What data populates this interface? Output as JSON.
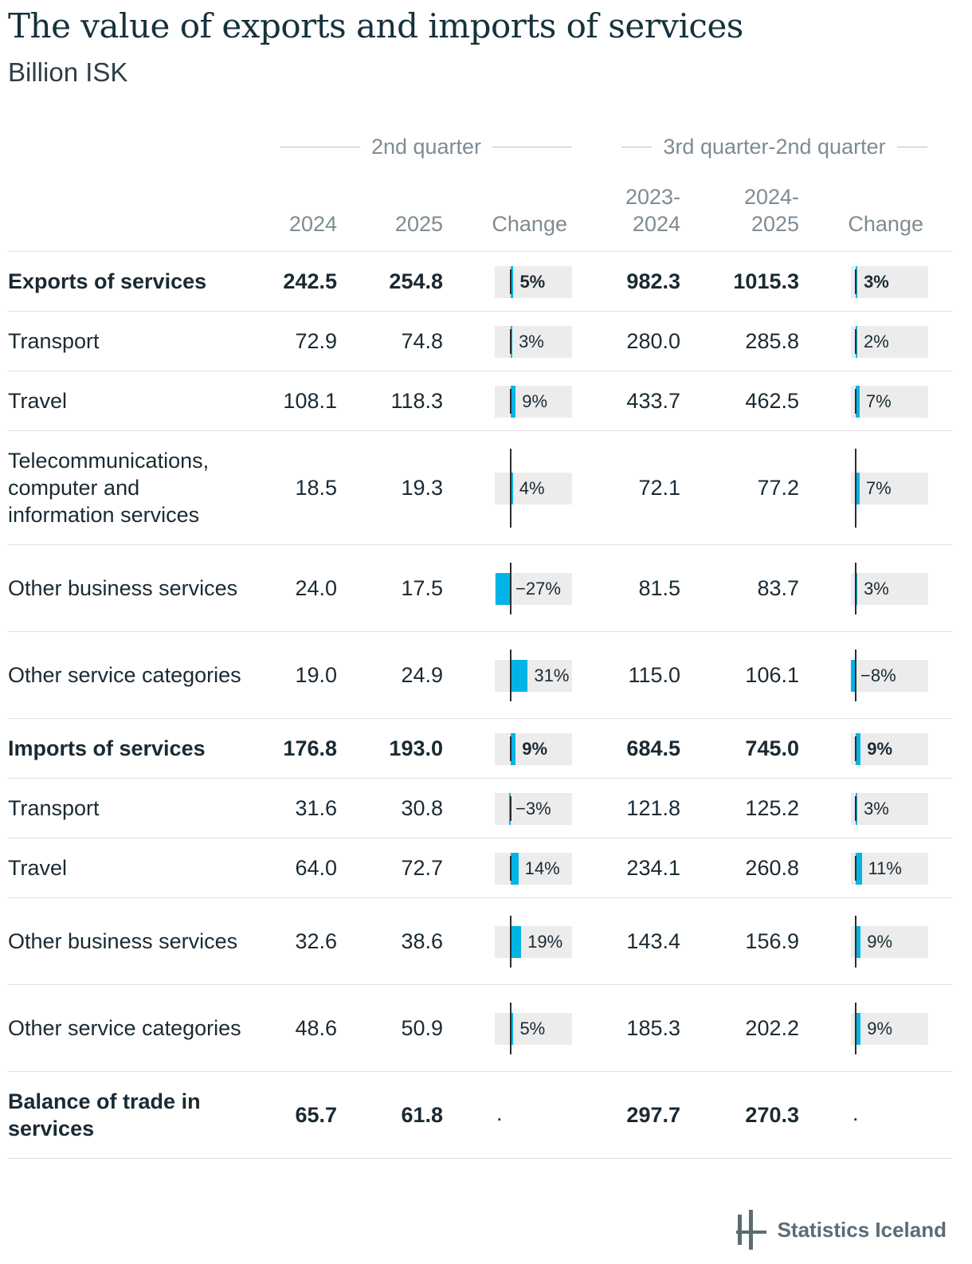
{
  "title": "The value of exports and imports of services",
  "subtitle": "Billion ISK",
  "groups": {
    "q2": "2nd quarter",
    "q3q2": "3rd quarter-2nd quarter"
  },
  "columns": {
    "c2024": "2024",
    "c2025": "2025",
    "change1": "Change",
    "p2023a": "2023-",
    "p2023b": "2024",
    "p2024a": "2024-",
    "p2024b": "2025",
    "change2": "Change"
  },
  "colors": {
    "bar": "#00b4e6",
    "bar_bg": "#ececec",
    "title": "#16323c"
  },
  "brand": {
    "name": "Statistics Iceland",
    "icon": "statistics-iceland-logo-icon"
  },
  "chart_data": {
    "type": "table",
    "rows": [
      {
        "label": "Exports of services",
        "bold": true,
        "v2024": "242.5",
        "v2025": "254.8",
        "ch1": 5,
        "ch1_text": "5%",
        "p1": "982.3",
        "p2": "1015.3",
        "ch2": 3,
        "ch2_text": "3%"
      },
      {
        "label": "Transport",
        "bold": false,
        "v2024": "72.9",
        "v2025": "74.8",
        "ch1": 3,
        "ch1_text": "3%",
        "p1": "280.0",
        "p2": "285.8",
        "ch2": 2,
        "ch2_text": "2%"
      },
      {
        "label": "Travel",
        "bold": false,
        "v2024": "108.1",
        "v2025": "118.3",
        "ch1": 9,
        "ch1_text": "9%",
        "p1": "433.7",
        "p2": "462.5",
        "ch2": 7,
        "ch2_text": "7%"
      },
      {
        "label": "Telecommunications, computer and information services",
        "bold": false,
        "v2024": "18.5",
        "v2025": "19.3",
        "ch1": 4,
        "ch1_text": "4%",
        "p1": "72.1",
        "p2": "77.2",
        "ch2": 7,
        "ch2_text": "7%"
      },
      {
        "label": "Other business services",
        "bold": false,
        "v2024": "24.0",
        "v2025": "17.5",
        "ch1": -27,
        "ch1_text": "−27%",
        "p1": "81.5",
        "p2": "83.7",
        "ch2": 3,
        "ch2_text": "3%"
      },
      {
        "label": "Other service categories",
        "bold": false,
        "v2024": "19.0",
        "v2025": "24.9",
        "ch1": 31,
        "ch1_text": "31%",
        "p1": "115.0",
        "p2": "106.1",
        "ch2": -8,
        "ch2_text": "−8%"
      },
      {
        "label": "Imports of services",
        "bold": true,
        "v2024": "176.8",
        "v2025": "193.0",
        "ch1": 9,
        "ch1_text": "9%",
        "p1": "684.5",
        "p2": "745.0",
        "ch2": 9,
        "ch2_text": "9%"
      },
      {
        "label": "Transport",
        "bold": false,
        "v2024": "31.6",
        "v2025": "30.8",
        "ch1": -3,
        "ch1_text": "−3%",
        "p1": "121.8",
        "p2": "125.2",
        "ch2": 3,
        "ch2_text": "3%"
      },
      {
        "label": "Travel",
        "bold": false,
        "v2024": "64.0",
        "v2025": "72.7",
        "ch1": 14,
        "ch1_text": "14%",
        "p1": "234.1",
        "p2": "260.8",
        "ch2": 11,
        "ch2_text": "11%"
      },
      {
        "label": "Other business services",
        "bold": false,
        "v2024": "32.6",
        "v2025": "38.6",
        "ch1": 19,
        "ch1_text": "19%",
        "p1": "143.4",
        "p2": "156.9",
        "ch2": 9,
        "ch2_text": "9%"
      },
      {
        "label": "Other service categories",
        "bold": false,
        "v2024": "48.6",
        "v2025": "50.9",
        "ch1": 5,
        "ch1_text": "5%",
        "p1": "185.3",
        "p2": "202.2",
        "ch2": 9,
        "ch2_text": "9%"
      },
      {
        "label": "Balance of trade in services",
        "bold": true,
        "v2024": "65.7",
        "v2025": "61.8",
        "ch1": null,
        "ch1_text": ".",
        "p1": "297.7",
        "p2": "270.3",
        "ch2": null,
        "ch2_text": "."
      }
    ]
  }
}
